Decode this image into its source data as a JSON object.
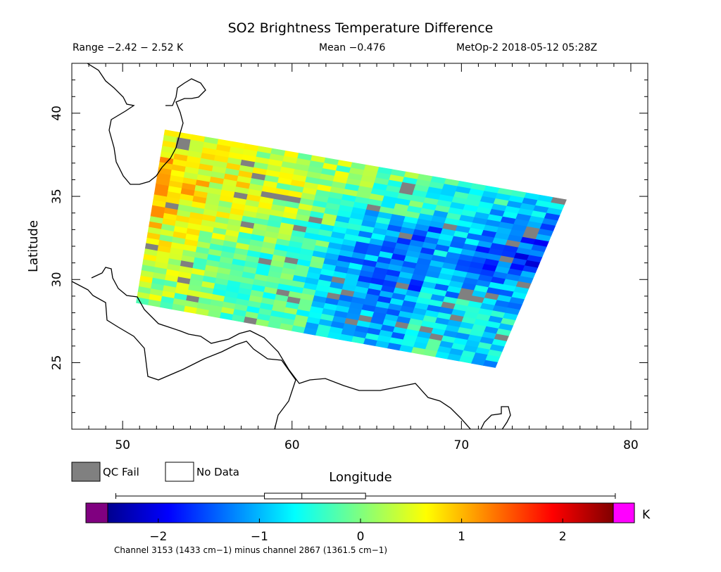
{
  "chart_data": {
    "type": "heatmap",
    "title": "SO2 Brightness Temperature Difference",
    "range_text": "Range −2.42 − 2.52 K",
    "mean_text": "Mean −0.476",
    "satellite_text": "MetOp-2 2018-05-12 05:28Z",
    "xlabel": "Longitude",
    "ylabel": "Latitude",
    "xlim": [
      47,
      81
    ],
    "ylim": [
      21,
      43
    ],
    "x_ticks": [
      50,
      60,
      70,
      80
    ],
    "y_ticks": [
      25,
      30,
      35,
      40
    ],
    "swath_corners": [
      [
        52.5,
        39
      ],
      [
        76.2,
        34.8
      ],
      [
        72,
        24.7
      ],
      [
        50.8,
        28.6
      ]
    ],
    "legend": [
      {
        "name": "QC Fail",
        "color": "#808080"
      },
      {
        "name": "No Data",
        "color": "#ffffff"
      }
    ],
    "colorbar": {
      "unit": "K",
      "min": -2.5,
      "max": 2.5,
      "ticks": [
        -2,
        -1,
        0,
        1,
        2
      ],
      "tick_labels": [
        "−2",
        "−1",
        "0",
        "1",
        "2"
      ],
      "below_color": "#800080",
      "above_color": "#ff00ff",
      "boxplot": {
        "min": -2.42,
        "q1": -0.95,
        "median": -0.58,
        "q3": 0.05,
        "max": 2.52
      }
    },
    "footnote": "Channel 3153 (1433 cm−1) minus channel 2867 (1361.5 cm−1)"
  }
}
